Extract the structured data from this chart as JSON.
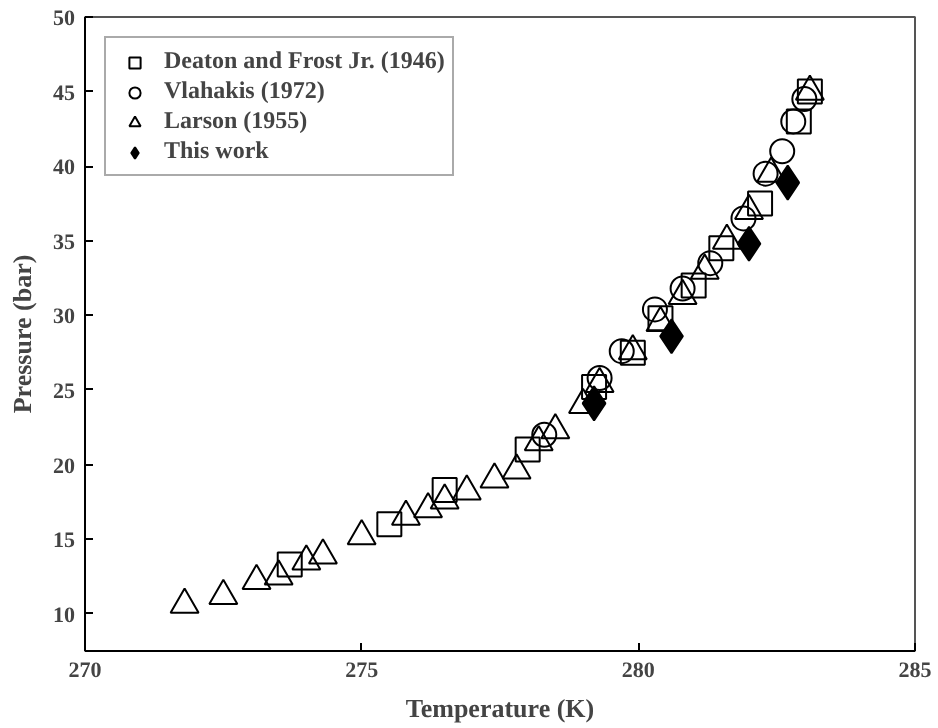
{
  "chart_data": {
    "type": "scatter",
    "xlabel": "Temperature (K)",
    "ylabel": "Pressure (bar)",
    "xlim": [
      270,
      285
    ],
    "ylim": [
      7.5,
      50
    ],
    "xticks": [
      270,
      275,
      280,
      285
    ],
    "yticks": [
      10,
      15,
      20,
      25,
      30,
      35,
      40,
      45,
      50
    ],
    "grid": false,
    "legend": "top left",
    "series": [
      {
        "name": "Deaton and Frost Jr. (1946)",
        "color": "#000000",
        "marker": "square",
        "x": [
          273.7,
          275.5,
          276.5,
          278.0,
          279.2,
          279.9,
          280.4,
          281.0,
          281.5,
          282.2,
          282.9,
          283.1
        ],
        "values": [
          13.3,
          16.0,
          18.3,
          21.0,
          25.2,
          27.5,
          29.8,
          32.0,
          34.5,
          37.5,
          43.0,
          45.0
        ]
      },
      {
        "name": "Vlahakis (1972)",
        "color": "#000000",
        "marker": "circle",
        "x": [
          278.3,
          279.3,
          279.7,
          280.3,
          280.8,
          281.3,
          281.9,
          282.3,
          282.6,
          282.8,
          283.0
        ],
        "values": [
          22.0,
          25.8,
          27.6,
          30.4,
          31.8,
          33.5,
          36.5,
          39.5,
          41.0,
          43.0,
          44.5
        ]
      },
      {
        "name": "Larson (1955)",
        "color": "#000000",
        "marker": "triangle",
        "x": [
          271.8,
          272.5,
          273.1,
          273.5,
          274.0,
          274.3,
          275.0,
          275.8,
          276.2,
          276.5,
          276.9,
          277.4,
          277.8,
          278.2,
          278.5,
          279.0,
          279.3,
          279.9,
          280.4,
          280.8,
          281.2,
          281.6,
          282.0,
          282.4,
          283.1
        ],
        "values": [
          10.6,
          11.2,
          12.2,
          12.5,
          13.5,
          13.9,
          15.2,
          16.5,
          17.0,
          17.6,
          18.2,
          19.0,
          19.6,
          21.5,
          22.3,
          24.0,
          25.4,
          27.6,
          29.5,
          31.3,
          33.0,
          35.0,
          37.0,
          39.5,
          45.0
        ]
      },
      {
        "name": "This work",
        "color": "#000000",
        "marker": "diamond",
        "x": [
          279.2,
          280.6,
          282.0,
          282.7
        ],
        "values": [
          24.1,
          28.6,
          34.8,
          38.9
        ]
      }
    ]
  }
}
